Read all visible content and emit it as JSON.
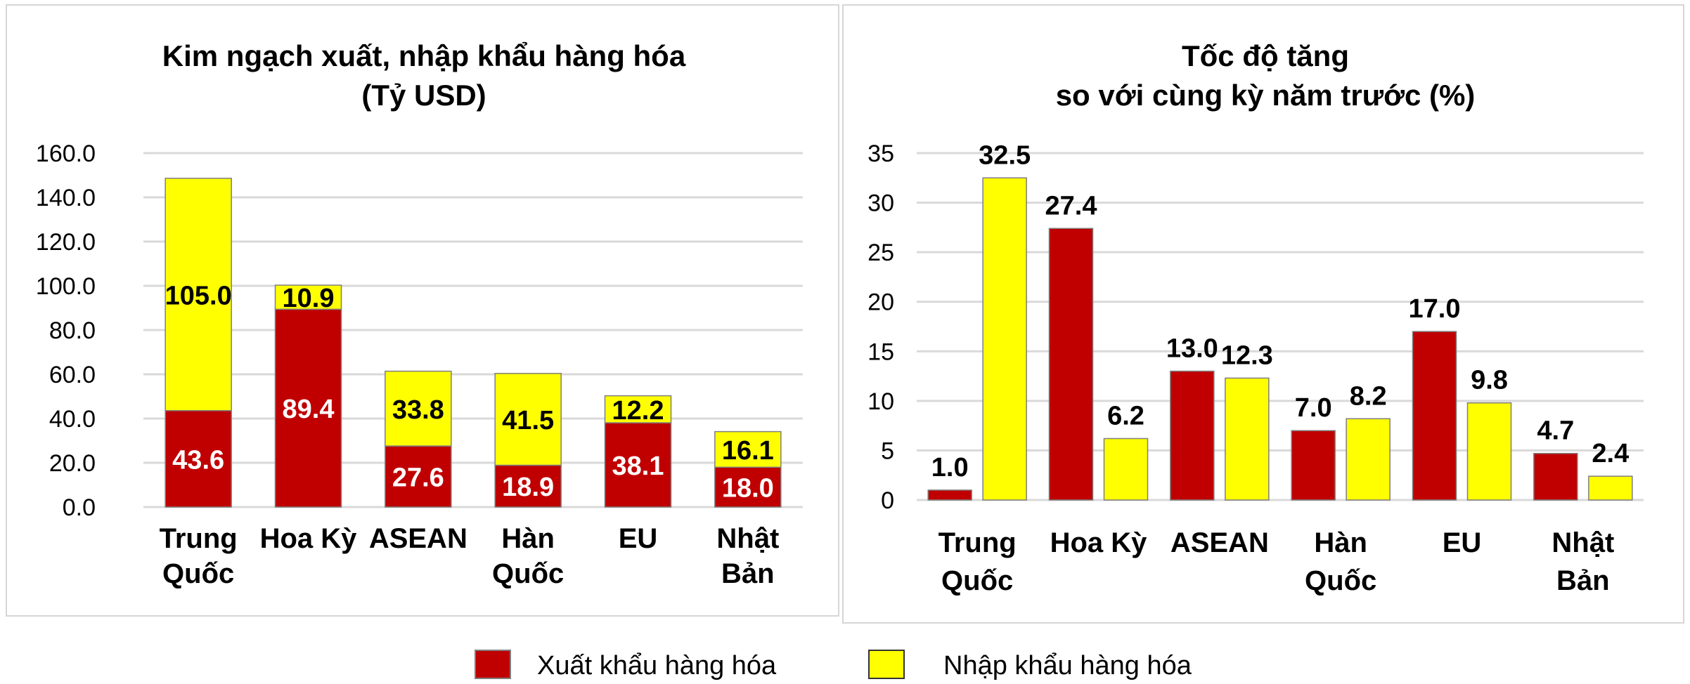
{
  "colors": {
    "export": "#c00000",
    "import": "#ffff00",
    "grid": "#d9d9d9",
    "bar_stroke": "#7f7f7f"
  },
  "legend": {
    "export_label": "Xuất khẩu hàng hóa",
    "import_label": "Nhập khẩu hàng hóa"
  },
  "chart_data": [
    {
      "type": "bar",
      "stacked": true,
      "title_line1": "Kim ngạch xuất, nhập khẩu hàng hóa",
      "title_line2": "(Tỷ USD)",
      "categories": [
        [
          "Trung",
          "Quốc"
        ],
        [
          "Hoa Kỳ"
        ],
        [
          "ASEAN"
        ],
        [
          "Hàn",
          "Quốc"
        ],
        [
          "EU"
        ],
        [
          "Nhật",
          "Bản"
        ]
      ],
      "series": [
        {
          "name": "Xuất khẩu hàng hóa",
          "values": [
            43.6,
            89.4,
            27.6,
            18.9,
            38.1,
            18.0
          ]
        },
        {
          "name": "Nhập khẩu hàng hóa",
          "values": [
            105.0,
            10.9,
            33.8,
            41.5,
            12.2,
            16.1
          ]
        }
      ],
      "value_labels": {
        "export": [
          "43.6",
          "89.4",
          "27.6",
          "18.9",
          "38.1",
          "18.0"
        ],
        "import": [
          "105.0",
          "10.9",
          "33.8",
          "41.5",
          "12.2",
          "16.1"
        ]
      },
      "ylim": [
        0,
        160
      ],
      "yticks": [
        "0.0",
        "20.0",
        "40.0",
        "60.0",
        "80.0",
        "100.0",
        "120.0",
        "140.0",
        "160.0"
      ],
      "grid": true
    },
    {
      "type": "bar",
      "stacked": false,
      "title_line1": "Tốc độ tăng",
      "title_line2": "so với cùng kỳ năm trước (%)",
      "categories": [
        [
          "Trung",
          "Quốc"
        ],
        [
          "Hoa Kỳ"
        ],
        [
          "ASEAN"
        ],
        [
          "Hàn",
          "Quốc"
        ],
        [
          "EU"
        ],
        [
          "Nhật",
          "Bản"
        ]
      ],
      "series": [
        {
          "name": "Xuất khẩu hàng hóa",
          "values": [
            1.0,
            27.4,
            13.0,
            7.0,
            17.0,
            4.7
          ]
        },
        {
          "name": "Nhập khẩu hàng hóa",
          "values": [
            32.5,
            6.2,
            12.3,
            8.2,
            9.8,
            2.4
          ]
        }
      ],
      "value_labels": {
        "export": [
          "1.0",
          "27.4",
          "13.0",
          "7.0",
          "17.0",
          "4.7"
        ],
        "import": [
          "32.5",
          "6.2",
          "12.3",
          "8.2",
          "9.8",
          "2.4"
        ]
      },
      "ylim": [
        0,
        35
      ],
      "yticks": [
        "0",
        "5",
        "10",
        "15",
        "20",
        "25",
        "30",
        "35"
      ],
      "grid": true
    }
  ]
}
